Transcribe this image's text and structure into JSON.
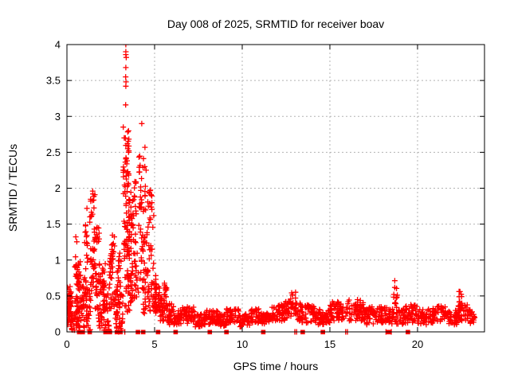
{
  "page": {
    "background": "#ffffff"
  },
  "chart_data": {
    "type": "scatter",
    "title": "Day 008 of 2025, SRMTID for receiver boav",
    "xlabel": "GPS time / hours",
    "ylabel": "SRMTID / TECUs",
    "legend": "none",
    "marker": {
      "shape": "plus",
      "color": "#ff0000",
      "size": 7,
      "stroke_width": 1.3
    },
    "grid": {
      "on": true,
      "color": "#b3b3b3",
      "dash": "2,3"
    },
    "axis_color": "#000000",
    "seed": 20250108,
    "axes": {
      "x": {
        "min": 0,
        "max": 23.82,
        "ticks": [
          0,
          5,
          10,
          15,
          20
        ],
        "tick_labels": [
          "0",
          "5",
          "10",
          "15",
          "20"
        ]
      },
      "y": {
        "min": 0,
        "max": 4,
        "ticks": [
          0,
          0.5,
          1,
          1.5,
          2,
          2.5,
          3,
          3.5,
          4
        ],
        "tick_labels": [
          "0",
          "0.5",
          "1",
          "1.5",
          "2",
          "2.5",
          "3",
          "3.5",
          "4"
        ]
      }
    },
    "points": [
      [
        3.36,
        4.0
      ],
      [
        3.36,
        3.9
      ],
      [
        3.36,
        3.86
      ],
      [
        3.38,
        3.82
      ],
      [
        3.36,
        3.68
      ],
      [
        3.35,
        3.55
      ],
      [
        3.37,
        3.48
      ],
      [
        3.36,
        3.42
      ],
      [
        3.35,
        3.16
      ],
      [
        4.27,
        2.9
      ],
      [
        3.45,
        2.62
      ],
      [
        3.47,
        2.55
      ],
      [
        4.45,
        2.57
      ],
      [
        4.44,
        2.3
      ],
      [
        3.52,
        2.2
      ],
      [
        4.52,
        2.25
      ],
      [
        1.59,
        1.91
      ],
      [
        1.36,
        1.82
      ],
      [
        1.14,
        1.72
      ],
      [
        1.47,
        1.96
      ]
    ],
    "clusters": [
      [
        0.02,
        0.18,
        0.05,
        0.63,
        25
      ],
      [
        0.03,
        0.3,
        0.3,
        0.58,
        18
      ],
      [
        0.2,
        0.45,
        0.02,
        0.3,
        20
      ],
      [
        0.45,
        0.62,
        0.15,
        1.42,
        30
      ],
      [
        0.5,
        0.8,
        0.02,
        0.5,
        24
      ],
      [
        0.62,
        0.78,
        0.55,
        1.0,
        18
      ],
      [
        0.8,
        1.0,
        0.05,
        0.75,
        22
      ],
      [
        1.0,
        1.18,
        0.3,
        1.5,
        30
      ],
      [
        1.1,
        1.35,
        0.02,
        0.6,
        22
      ],
      [
        1.3,
        1.62,
        1.5,
        1.93,
        12
      ],
      [
        1.35,
        1.6,
        0.55,
        1.2,
        25
      ],
      [
        1.5,
        1.85,
        1.25,
        1.47,
        16
      ],
      [
        1.6,
        1.95,
        0.3,
        0.95,
        28
      ],
      [
        1.75,
        2.0,
        0.02,
        0.35,
        18
      ],
      [
        2.0,
        2.2,
        0.3,
        0.95,
        26
      ],
      [
        2.1,
        2.4,
        0.02,
        0.55,
        24
      ],
      [
        2.4,
        2.62,
        0.3,
        1.1,
        26
      ],
      [
        2.55,
        2.72,
        0.9,
        1.35,
        14
      ],
      [
        2.6,
        2.9,
        0.05,
        0.6,
        24
      ],
      [
        2.85,
        3.1,
        0.3,
        1.1,
        26
      ],
      [
        2.95,
        3.2,
        0.02,
        0.55,
        20
      ],
      [
        3.2,
        3.55,
        1.75,
        2.9,
        40
      ],
      [
        3.25,
        3.6,
        0.8,
        1.75,
        40
      ],
      [
        3.3,
        3.7,
        0.25,
        0.8,
        30
      ],
      [
        3.55,
        3.95,
        1.1,
        2.1,
        35
      ],
      [
        3.7,
        4.1,
        0.45,
        1.1,
        30
      ],
      [
        4.1,
        4.5,
        1.4,
        2.45,
        28
      ],
      [
        4.15,
        4.6,
        0.6,
        1.4,
        32
      ],
      [
        4.3,
        4.75,
        0.25,
        0.7,
        24
      ],
      [
        4.6,
        4.95,
        0.8,
        2.1,
        28
      ],
      [
        4.8,
        5.1,
        0.3,
        0.8,
        24
      ],
      [
        5.0,
        5.35,
        0.25,
        0.65,
        30
      ],
      [
        5.3,
        5.7,
        0.15,
        0.5,
        30
      ],
      [
        5.55,
        5.75,
        0.45,
        0.68,
        10
      ],
      [
        5.7,
        6.1,
        0.1,
        0.4,
        30
      ],
      [
        6.1,
        6.6,
        0.08,
        0.3,
        30
      ],
      [
        6.6,
        7.3,
        0.12,
        0.35,
        45
      ],
      [
        7.3,
        7.9,
        0.07,
        0.25,
        38
      ],
      [
        7.9,
        8.6,
        0.1,
        0.3,
        42
      ],
      [
        8.6,
        9.1,
        0.08,
        0.25,
        30
      ],
      [
        9.1,
        9.8,
        0.12,
        0.32,
        45
      ],
      [
        9.8,
        10.5,
        0.07,
        0.25,
        42
      ],
      [
        10.5,
        11.1,
        0.12,
        0.32,
        38
      ],
      [
        11.1,
        11.7,
        0.1,
        0.28,
        38
      ],
      [
        11.7,
        12.4,
        0.15,
        0.38,
        45
      ],
      [
        12.4,
        12.8,
        0.18,
        0.42,
        28
      ],
      [
        12.75,
        13.05,
        0.25,
        0.56,
        18
      ],
      [
        13.0,
        13.4,
        0.15,
        0.4,
        26
      ],
      [
        13.4,
        14.2,
        0.12,
        0.38,
        50
      ],
      [
        14.2,
        15.0,
        0.1,
        0.33,
        50
      ],
      [
        15.0,
        15.9,
        0.15,
        0.42,
        55
      ],
      [
        15.9,
        16.9,
        0.15,
        0.45,
        60
      ],
      [
        16.9,
        17.6,
        0.1,
        0.35,
        45
      ],
      [
        17.6,
        18.4,
        0.12,
        0.35,
        48
      ],
      [
        18.6,
        18.85,
        0.3,
        0.76,
        13
      ],
      [
        18.4,
        19.2,
        0.1,
        0.32,
        45
      ],
      [
        19.2,
        20.0,
        0.12,
        0.38,
        48
      ],
      [
        20.0,
        20.8,
        0.1,
        0.32,
        48
      ],
      [
        20.8,
        21.6,
        0.12,
        0.36,
        48
      ],
      [
        21.6,
        22.3,
        0.1,
        0.3,
        42
      ],
      [
        22.35,
        22.55,
        0.3,
        0.58,
        11
      ],
      [
        22.3,
        23.0,
        0.15,
        0.38,
        42
      ],
      [
        23.0,
        23.3,
        0.12,
        0.3,
        18
      ]
    ],
    "zero_squares": [
      0.7,
      0.9,
      1.3,
      2.2,
      2.45,
      2.85,
      3.05,
      4.05,
      4.35,
      5.2,
      6.2,
      8.15,
      9.1,
      11.2,
      13.45,
      14.6,
      18.35,
      19.45
    ],
    "zero_bars": [
      2.95,
      3.3,
      13.0,
      13.1,
      15.9,
      16.0,
      18.2,
      18.5
    ]
  }
}
